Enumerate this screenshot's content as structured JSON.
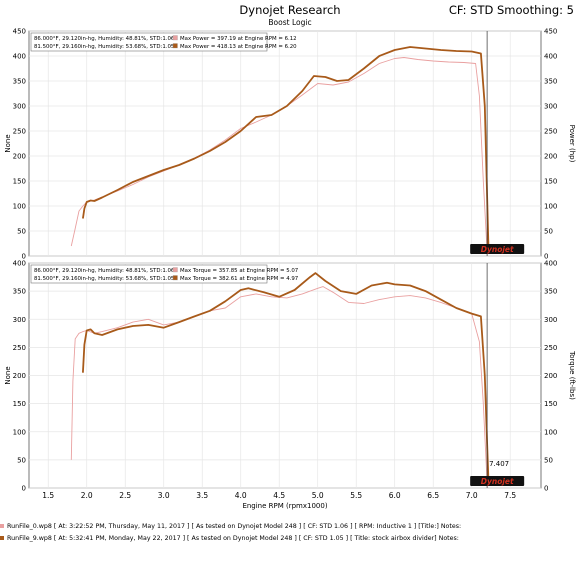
{
  "header": {
    "title": "Dynojet Research",
    "subtitle": "Boost Logic",
    "cf_text": "CF: STD Smoothing: 5"
  },
  "colors": {
    "run1": "#e9a0a0",
    "run2": "#a85a1a",
    "cursor": "#333333",
    "grid": "#e6e6e6"
  },
  "chart_data": [
    {
      "type": "line",
      "name": "power",
      "ylabel_left": "None",
      "ylabel_right": "Power (hp)",
      "xlabel": "",
      "xlim": [
        1.25,
        7.9
      ],
      "ylim": [
        0,
        450
      ],
      "yticks": [
        0,
        50,
        100,
        150,
        200,
        250,
        300,
        350,
        400,
        450
      ],
      "legend": {
        "placement": "top-left",
        "entries": [
          {
            "conditions": "86.000°F, 29.120in-hg, Humidity: 48.81%, STD:1.06",
            "note": "Max Power = 397.19 at Engine RPM = 6.12"
          },
          {
            "conditions": "81.500°F, 29.160in-hg, Humidity: 53.68%, STD:1.05",
            "note": "Max Power = 418.13 at Engine RPM = 6.20"
          }
        ]
      },
      "series": [
        {
          "x": [
            1.8,
            1.85,
            1.9,
            1.95,
            2.0,
            2.1,
            2.2,
            2.4,
            2.6,
            2.8,
            3.0,
            3.2,
            3.4,
            3.6,
            3.8,
            4.0,
            4.2,
            4.4,
            4.6,
            4.8,
            5.0,
            5.2,
            5.4,
            5.6,
            5.8,
            6.0,
            6.12,
            6.3,
            6.5,
            6.7,
            6.9,
            7.05,
            7.1,
            7.15,
            7.2
          ],
          "values": [
            20,
            55,
            90,
            100,
            108,
            112,
            118,
            130,
            143,
            158,
            170,
            182,
            196,
            212,
            232,
            255,
            268,
            282,
            300,
            322,
            345,
            342,
            348,
            365,
            385,
            395,
            397,
            393,
            390,
            388,
            387,
            385,
            320,
            150,
            10
          ]
        },
        {
          "x": [
            1.95,
            1.97,
            2.0,
            2.05,
            2.1,
            2.2,
            2.4,
            2.6,
            2.8,
            3.0,
            3.2,
            3.4,
            3.6,
            3.8,
            4.0,
            4.2,
            4.4,
            4.6,
            4.8,
            4.95,
            5.1,
            5.25,
            5.4,
            5.6,
            5.8,
            6.0,
            6.2,
            6.4,
            6.6,
            6.8,
            7.0,
            7.12,
            7.17,
            7.2,
            7.22
          ],
          "values": [
            75,
            95,
            108,
            111,
            110,
            117,
            132,
            148,
            160,
            172,
            182,
            195,
            210,
            228,
            250,
            278,
            282,
            300,
            330,
            360,
            358,
            350,
            352,
            375,
            400,
            412,
            418,
            415,
            412,
            410,
            409,
            405,
            300,
            120,
            5
          ]
        }
      ],
      "cursor_x": 7.2
    },
    {
      "type": "line",
      "name": "torque",
      "ylabel_left": "None",
      "ylabel_right": "Torque (ft-lbs)",
      "xlabel": "Engine RPM (rpmx1000)",
      "xlim": [
        1.25,
        7.9
      ],
      "ylim": [
        0,
        400
      ],
      "yticks": [
        0,
        50,
        100,
        150,
        200,
        250,
        300,
        350,
        400
      ],
      "xticks": [
        1.5,
        2.0,
        2.5,
        3.0,
        3.5,
        4.0,
        4.5,
        5.0,
        5.5,
        6.0,
        6.5,
        7.0,
        7.5
      ],
      "xtick_labels": [
        "1.5",
        "2.0",
        "2.5",
        "3.0",
        "3.5",
        "4.0",
        "4.5",
        "5.0",
        "5.5",
        "6.0",
        "6.5",
        "7.0",
        "7.5"
      ],
      "annotation": "7.407",
      "legend": {
        "placement": "top-left",
        "entries": [
          {
            "conditions": "86.000°F, 29.120in-hg, Humidity: 48.81%, STD:1.06",
            "note": "Max Torque = 357.85 at Engine RPM = 5.07"
          },
          {
            "conditions": "81.500°F, 29.160in-hg, Humidity: 53.68%, STD:1.05",
            "note": "Max Torque = 382.61 at Engine RPM = 4.97"
          }
        ]
      },
      "series": [
        {
          "x": [
            1.8,
            1.82,
            1.85,
            1.9,
            1.95,
            2.0,
            2.1,
            2.2,
            2.4,
            2.6,
            2.8,
            3.0,
            3.2,
            3.4,
            3.6,
            3.8,
            4.0,
            4.2,
            4.4,
            4.6,
            4.8,
            5.0,
            5.07,
            5.2,
            5.4,
            5.6,
            5.8,
            6.0,
            6.2,
            6.4,
            6.6,
            6.8,
            7.0,
            7.1,
            7.15,
            7.2
          ],
          "values": [
            50,
            190,
            265,
            275,
            278,
            280,
            275,
            278,
            285,
            295,
            300,
            290,
            295,
            305,
            315,
            320,
            340,
            345,
            340,
            338,
            345,
            355,
            358,
            348,
            330,
            328,
            335,
            340,
            342,
            338,
            330,
            320,
            310,
            260,
            150,
            10
          ]
        },
        {
          "x": [
            1.95,
            1.97,
            2.0,
            2.05,
            2.1,
            2.2,
            2.4,
            2.6,
            2.8,
            3.0,
            3.2,
            3.4,
            3.6,
            3.8,
            4.0,
            4.1,
            4.3,
            4.5,
            4.7,
            4.9,
            4.97,
            5.1,
            5.3,
            5.5,
            5.7,
            5.9,
            6.0,
            6.2,
            6.4,
            6.6,
            6.8,
            7.0,
            7.12,
            7.17,
            7.2,
            7.22
          ],
          "values": [
            205,
            255,
            280,
            282,
            275,
            272,
            282,
            288,
            290,
            285,
            295,
            305,
            315,
            332,
            352,
            355,
            348,
            340,
            352,
            375,
            382,
            368,
            350,
            345,
            360,
            365,
            362,
            360,
            350,
            335,
            320,
            310,
            305,
            200,
            80,
            5
          ]
        }
      ],
      "cursor_x": 7.2
    }
  ],
  "footer": [
    {
      "text": "RunFile_0.wp8 [ At: 3:22:52 PM, Thursday, May 11, 2017 ] [ As tested on Dynojet Model 248 ] [ CF: STD 1.06 ] [ RPM: Inductive 1 ] [Title:] Notes:"
    },
    {
      "text": "RunFile_9.wp8 [ At: 5:32:41 PM, Monday, May 22, 2017 ] [ As tested on Dynojet Model 248 ] [ CF: STD 1.05 ] [ Title: stock airbox divider] Notes:"
    }
  ],
  "logo_text": "Dynojet"
}
